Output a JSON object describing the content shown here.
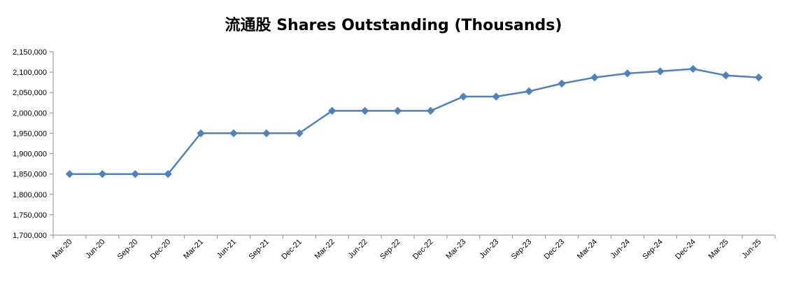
{
  "chart_data": {
    "type": "line",
    "title": "流通股 Shares Outstanding (Thousands)",
    "xlabel": "",
    "ylabel": "",
    "ylim": [
      1700000,
      2150000
    ],
    "yticks": [
      "1,700,000",
      "1,750,000",
      "1,800,000",
      "1,850,000",
      "1,900,000",
      "1,950,000",
      "2,000,000",
      "2,050,000",
      "2,100,000",
      "2,150,000"
    ],
    "grid": false,
    "legend": "none",
    "categories": [
      "Mar-20",
      "Jun-20",
      "Sep-20",
      "Dec-20",
      "Mar-21",
      "Jun-21",
      "Sep-21",
      "Dec-21",
      "Mar-22",
      "Jun-22",
      "Sep-22",
      "Dec-22",
      "Mar-23",
      "Jun-23",
      "Sep-23",
      "Dec-23",
      "Mar-24",
      "Jun-24",
      "Sep-24",
      "Dec-24",
      "Mar-25",
      "Jun-25"
    ],
    "series": [
      {
        "color": "#4F81BD",
        "values": [
          1850000,
          1850000,
          1850000,
          1850000,
          1950000,
          1950000,
          1950000,
          1950000,
          2005000,
          2005000,
          2005000,
          2005000,
          2040000,
          2040000,
          2053000,
          2072000,
          2087000,
          2097000,
          2102000,
          2108000,
          2092000,
          2087000
        ]
      }
    ]
  }
}
